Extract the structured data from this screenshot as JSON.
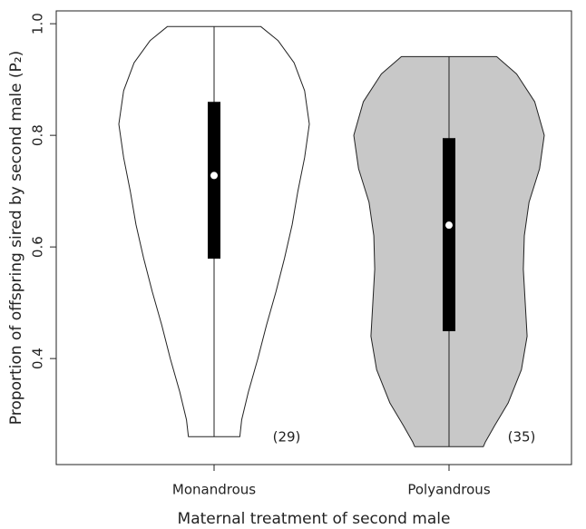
{
  "chart_data": {
    "type": "violin",
    "xlabel": "Maternal treatment of second male",
    "ylabel": "Proportion of offspring sired by second male (P₂)",
    "categories": [
      "Monandrous",
      "Polyandrous"
    ],
    "colors": [
      "#ffffff",
      "#c8c8c8"
    ],
    "min": [
      0.26,
      0.242
    ],
    "q1": [
      0.579,
      0.449
    ],
    "median": [
      0.728,
      0.639
    ],
    "q3": [
      0.86,
      0.795
    ],
    "max": [
      0.995,
      0.941
    ],
    "density_y": [
      [
        0.995,
        0.97,
        0.93,
        0.88,
        0.82,
        0.76,
        0.7,
        0.64,
        0.58,
        0.52,
        0.46,
        0.4,
        0.34,
        0.29,
        0.26
      ],
      [
        0.941,
        0.91,
        0.86,
        0.8,
        0.74,
        0.68,
        0.62,
        0.56,
        0.5,
        0.44,
        0.38,
        0.32,
        0.28,
        0.25,
        0.242
      ]
    ],
    "density": [
      [
        0.49,
        0.67,
        0.84,
        0.95,
        1,
        0.95,
        0.88,
        0.82,
        0.74,
        0.65,
        0.55,
        0.46,
        0.36,
        0.29,
        0.27
      ],
      [
        0.5,
        0.71,
        0.9,
        1,
        0.95,
        0.84,
        0.79,
        0.78,
        0.8,
        0.82,
        0.76,
        0.62,
        0.48,
        0.38,
        0.36
      ]
    ],
    "annotations": [
      "(29)",
      "(35)"
    ],
    "ylim": [
      0.21,
      1.023
    ],
    "yticks": [
      0.4,
      0.6,
      0.8,
      {
        "value": 1,
        "label": "1.0"
      }
    ]
  }
}
